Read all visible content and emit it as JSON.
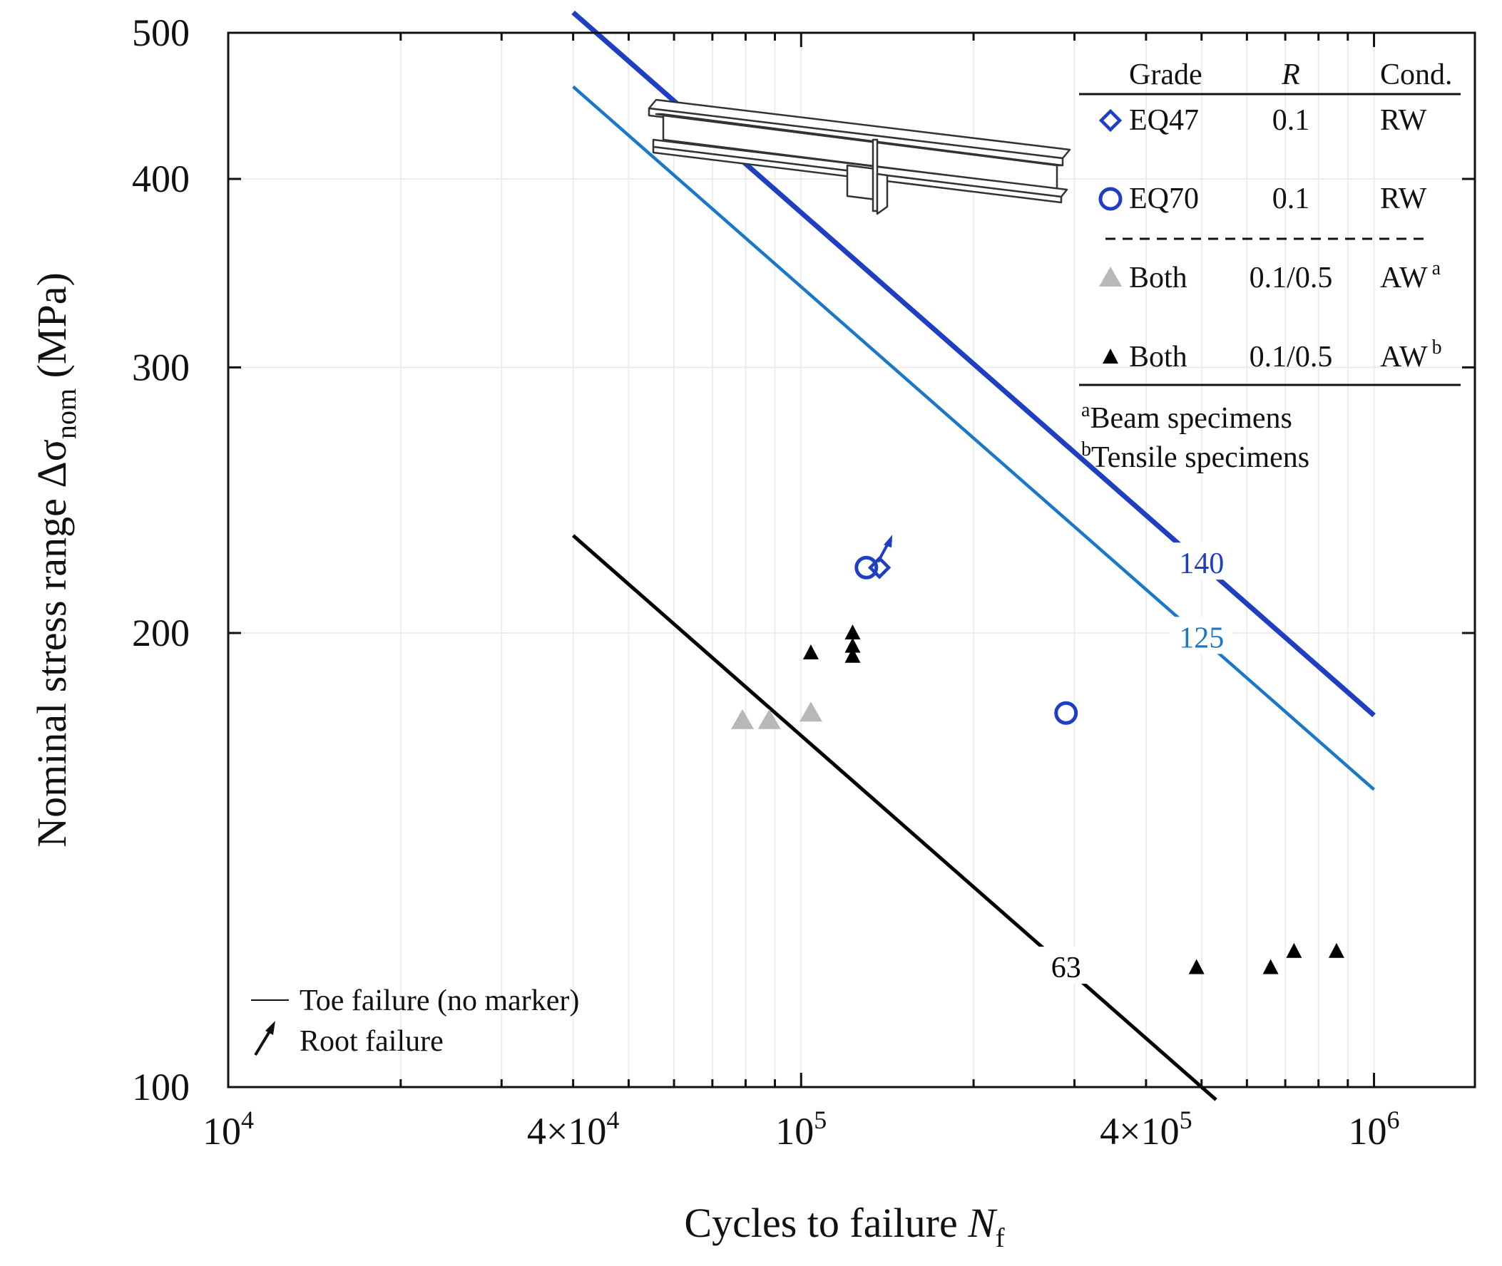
{
  "chart_data": {
    "type": "scatter",
    "title": "",
    "xlabel": "Cycles to failure",
    "xlabel_symbol": "N",
    "xlabel_sub": "f",
    "ylabel": "Nominal stress range Δσ",
    "ylabel_sub": "nom",
    "ylabel_unit": "(MPa)",
    "x_scale": "log",
    "y_scale": "log",
    "xlim": [
      10000,
      1500000
    ],
    "ylim": [
      100,
      500
    ],
    "grid": true,
    "x_ticks": [
      {
        "value": 10000,
        "base": "10",
        "exp": "4"
      },
      {
        "value": 40000,
        "base": "4×10",
        "exp": "4"
      },
      {
        "value": 100000,
        "base": "10",
        "exp": "5"
      },
      {
        "value": 400000,
        "base": "4×10",
        "exp": "5"
      },
      {
        "value": 1000000,
        "base": "10",
        "exp": "6"
      }
    ],
    "y_ticks": [
      {
        "value": 100,
        "label": "100"
      },
      {
        "value": 200,
        "label": "200"
      },
      {
        "value": 300,
        "label": "300"
      },
      {
        "value": 400,
        "label": "400"
      },
      {
        "value": 500,
        "label": "500"
      }
    ],
    "design_curves": [
      {
        "name": "FAT140",
        "label": "140",
        "fat": 140,
        "color": "#1e3ec4",
        "width": 7,
        "n_range": [
          40000,
          1000000
        ],
        "label_at": 500000
      },
      {
        "name": "FAT125",
        "label": "125",
        "fat": 125,
        "color": "#1a78c9",
        "width": 4.5,
        "n_range": [
          40000,
          1000000
        ],
        "label_at": 500000
      },
      {
        "name": "FAT63",
        "label": "63",
        "fat": 63,
        "color": "#000000",
        "width": 5,
        "n_range": [
          40000,
          530000
        ],
        "label_at": 290000
      }
    ],
    "series": [
      {
        "name": "EQ47 RW",
        "marker": "diamond",
        "color": "#1e3ec4",
        "points": [
          [
            137000,
            221
          ]
        ],
        "root_failure": [
          true
        ]
      },
      {
        "name": "EQ70 RW",
        "marker": "circle",
        "color": "#1e3ec4",
        "points": [
          [
            130000,
            221
          ],
          [
            290000,
            177
          ]
        ],
        "root_failure": [
          false,
          false
        ]
      },
      {
        "name": "Both AW beam",
        "marker": "triangle",
        "color": "#b8b8b8",
        "points": [
          [
            79000,
            175
          ],
          [
            88000,
            175
          ],
          [
            104000,
            177
          ]
        ]
      },
      {
        "name": "Both AW tensile",
        "marker": "triangle-small",
        "color": "#000000",
        "points": [
          [
            104000,
            194
          ],
          [
            123000,
            200
          ],
          [
            123000,
            196
          ],
          [
            123000,
            193
          ],
          [
            490000,
            120
          ],
          [
            660000,
            120
          ],
          [
            725000,
            123
          ],
          [
            860000,
            123
          ]
        ]
      }
    ],
    "legend": {
      "position": "top-right",
      "headers": {
        "grade": "Grade",
        "r": "R",
        "cond": "Cond."
      },
      "rows": [
        {
          "marker": "diamond",
          "color": "#1e3ec4",
          "grade": "EQ47",
          "r": "0.1",
          "cond": "RW",
          "sup": ""
        },
        {
          "marker": "circle",
          "color": "#1e3ec4",
          "grade": "EQ70",
          "r": "0.1",
          "cond": "RW",
          "sup": ""
        },
        {
          "marker": "triangle",
          "color": "#b8b8b8",
          "grade": "Both",
          "r": "0.1/0.5",
          "cond": "AW",
          "sup": "a"
        },
        {
          "marker": "triangle-small",
          "color": "#000000",
          "grade": "Both",
          "r": "0.1/0.5",
          "cond": "AW",
          "sup": "b"
        }
      ],
      "footnotes": [
        {
          "mark": "a",
          "text": "Beam specimens"
        },
        {
          "mark": "b",
          "text": "Tensile specimens"
        }
      ]
    },
    "failure_legend": {
      "position": "bottom-left",
      "toe": "Toe failure (no marker)",
      "root": "Root failure"
    }
  }
}
